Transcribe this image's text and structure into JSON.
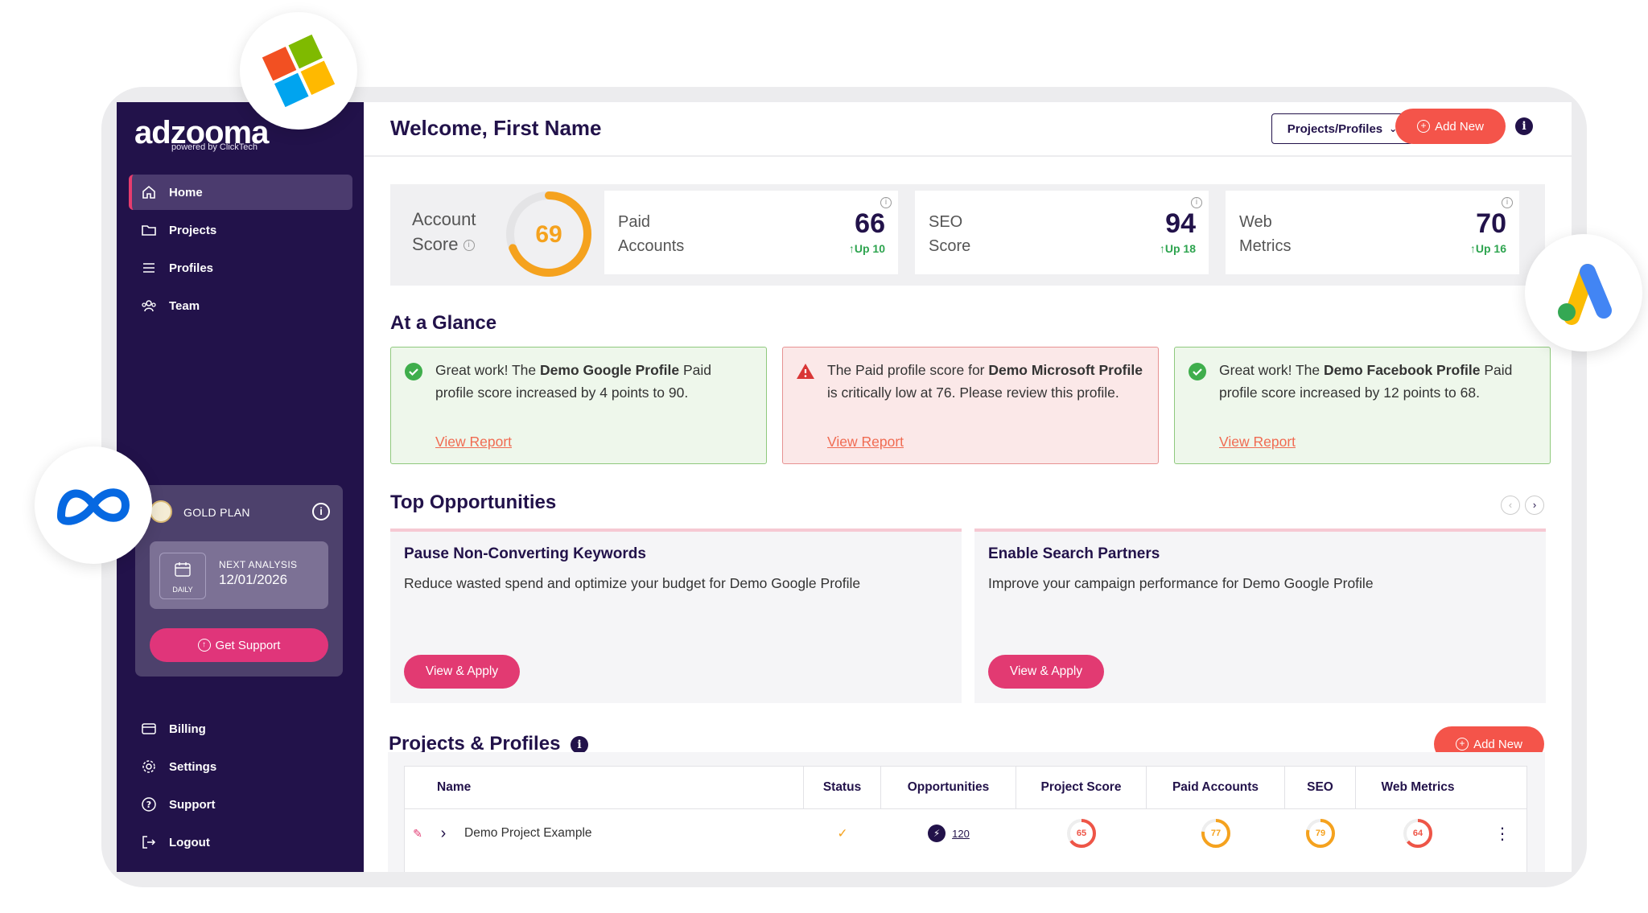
{
  "brand": {
    "logo": "adzooma",
    "logo_sub": "powered by ClickTech",
    "bubbles": [
      "microsoft-logo",
      "meta-logo",
      "google-ads-logo"
    ]
  },
  "sidebar": {
    "items": [
      {
        "label": "Home",
        "icon": "home-icon",
        "active": true
      },
      {
        "label": "Projects",
        "icon": "folder-icon"
      },
      {
        "label": "Profiles",
        "icon": "list-icon"
      },
      {
        "label": "Team",
        "icon": "team-icon"
      }
    ],
    "bottom_items": [
      {
        "label": "Billing",
        "icon": "card-icon"
      },
      {
        "label": "Settings",
        "icon": "gear-icon"
      },
      {
        "label": "Support",
        "icon": "help-icon"
      },
      {
        "label": "Logout",
        "icon": "logout-icon"
      }
    ],
    "plan": {
      "name": "GOLD PLAN",
      "analysis_label": "NEXT ANALYSIS",
      "analysis_date": "12/01/2026",
      "frequency": "DAILY",
      "support_label": "Get Support"
    }
  },
  "header": {
    "welcome": "Welcome, First Name",
    "dropdown": "Projects/Profiles",
    "add_new": "Add New"
  },
  "scores": {
    "account": {
      "label_line1": "Account",
      "label_line2": "Score",
      "value": "69",
      "fraction": 0.69
    },
    "cards": [
      {
        "line1": "Paid",
        "line2": "Accounts",
        "value": "66",
        "change": "Up 10"
      },
      {
        "line1": "SEO",
        "line2": "Score",
        "value": "94",
        "change": "Up 18"
      },
      {
        "line1": "Web",
        "line2": "Metrics",
        "value": "70",
        "change": "Up 16"
      }
    ]
  },
  "glance": {
    "title": "At a Glance",
    "cards": [
      {
        "status": "good",
        "pre": "Great work! The ",
        "bold": "Demo Google Profile",
        "post": " Paid profile score increased by 4 points to 90.",
        "link": "View Report"
      },
      {
        "status": "bad",
        "pre": "The Paid profile score for ",
        "bold": "Demo Microsoft Profile",
        "post": " is critically low at 76. Please review this profile.",
        "link": "View Report"
      },
      {
        "status": "good",
        "pre": "Great work! The ",
        "bold": "Demo Facebook Profile",
        "post": " Paid profile score increased by 12 points to 68.",
        "link": "View Report"
      }
    ]
  },
  "opportunities": {
    "title": "Top Opportunities",
    "items": [
      {
        "title": "Pause Non-Converting Keywords",
        "desc": "Reduce wasted spend and optimize your budget for Demo Google Profile",
        "button": "View & Apply"
      },
      {
        "title": "Enable Search Partners",
        "desc": "Improve your campaign performance for Demo Google Profile",
        "button": "View & Apply"
      }
    ]
  },
  "projects": {
    "title": "Projects & Profiles",
    "add_new": "Add New",
    "columns": [
      "Name",
      "Status",
      "Opportunities",
      "Project Score",
      "Paid Accounts",
      "SEO",
      "Web Metrics"
    ],
    "rows": [
      {
        "name": "Demo Project Example",
        "opportunities": "120",
        "project_score": "65",
        "paid_accounts": "77",
        "seo": "79",
        "web_metrics": "64"
      }
    ]
  },
  "colors": {
    "accent": "#e0357a",
    "orange": "#f4544a",
    "navy": "#22124a",
    "good": "#2ea44f",
    "ring_orange": "#f5a21e",
    "ring_red": "#ee5547"
  }
}
